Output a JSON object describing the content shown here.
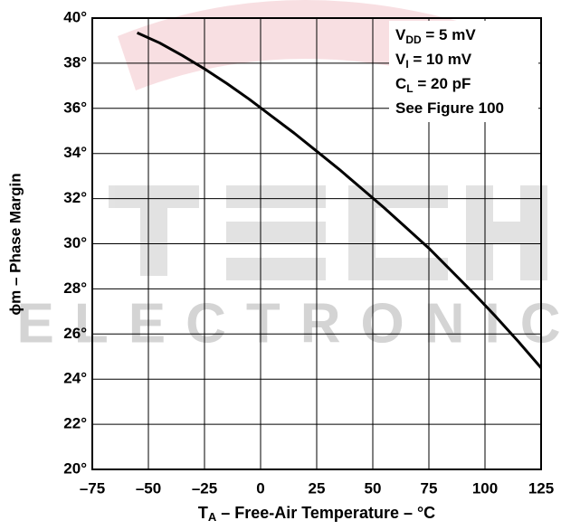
{
  "chart_data": {
    "type": "line",
    "xlabel": [
      "T",
      "A",
      " – Free-Air Temperature – °C"
    ],
    "ylabel": "ϕm – Phase Margin",
    "annotations": [
      [
        "V",
        "DD",
        " = 5 mV"
      ],
      [
        "V",
        "I",
        " = 10 mV"
      ],
      [
        "C",
        "L",
        " = 20 pF"
      ],
      [
        "See Figure 100"
      ]
    ],
    "watermark": "ELECTRONIC",
    "grid": true,
    "xlim": [
      -75,
      125
    ],
    "ylim": [
      20,
      40
    ],
    "xticks": [
      {
        "value": -75,
        "label": "–75"
      },
      {
        "value": -50,
        "label": "–50"
      },
      {
        "value": -25,
        "label": "–25"
      },
      0,
      25,
      50,
      75,
      100,
      125
    ],
    "yticks": [
      {
        "value": 20,
        "label": "20°"
      },
      {
        "value": 22,
        "label": "22°"
      },
      {
        "value": 24,
        "label": "24°"
      },
      {
        "value": 26,
        "label": "26°"
      },
      {
        "value": 28,
        "label": "28°"
      },
      {
        "value": 30,
        "label": "30°"
      },
      {
        "value": 32,
        "label": "32°"
      },
      {
        "value": 34,
        "label": "34°"
      },
      {
        "value": 36,
        "label": "36°"
      },
      {
        "value": 38,
        "label": "38°"
      },
      {
        "value": 40,
        "label": "40°"
      }
    ],
    "series": [
      {
        "color": "#000000",
        "x": [
          -55,
          -45,
          -35,
          -25,
          -15,
          -5,
          5,
          15,
          25,
          35,
          45,
          55,
          65,
          75,
          85,
          95,
          105,
          115,
          125
        ],
        "values": [
          39.35,
          38.9,
          38.35,
          37.75,
          37.1,
          36.4,
          35.65,
          34.9,
          34.1,
          33.3,
          32.45,
          31.6,
          30.7,
          29.8,
          28.8,
          27.8,
          26.75,
          25.65,
          24.5
        ]
      }
    ]
  }
}
